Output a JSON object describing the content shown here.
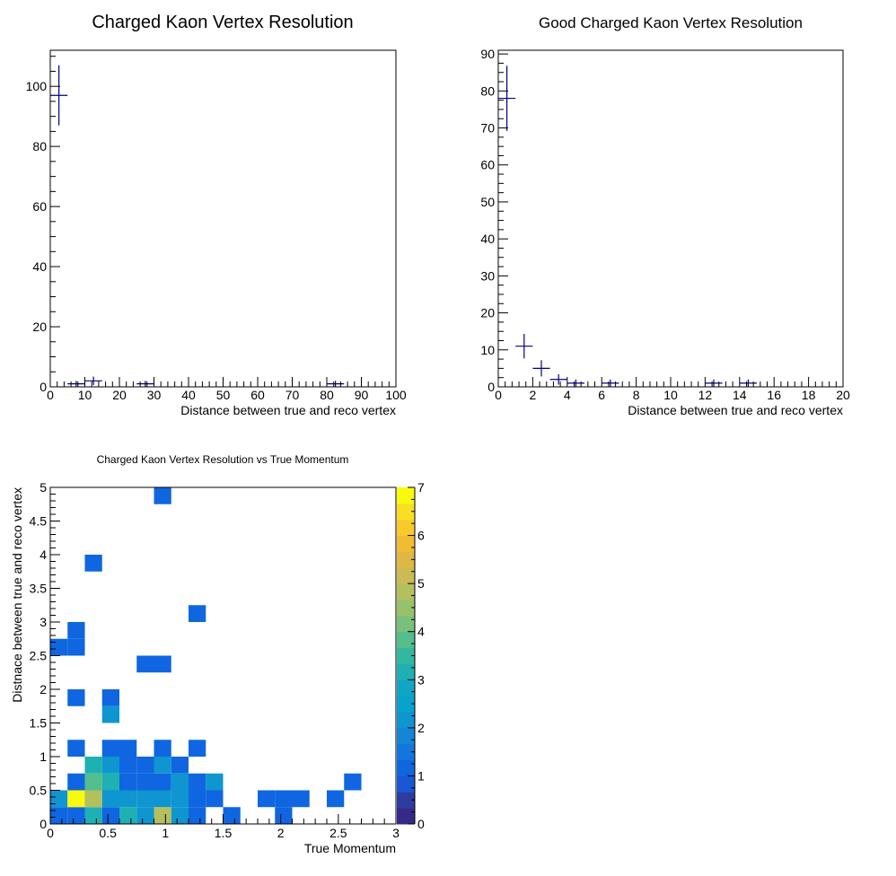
{
  "colors": {
    "marker": "#000080",
    "palette": [
      "#352a87",
      "#2d3c9e",
      "#1957d3",
      "#0f66e0",
      "#1376dc",
      "#1585d5",
      "#0f95d0",
      "#09a2cc",
      "#0ea6c4",
      "#1eb0b2",
      "#33b8a0",
      "#54be8d",
      "#79c17b",
      "#98c16c",
      "#b4bf5e",
      "#cbbb52",
      "#e0b745",
      "#f2bb34",
      "#f8cb2b",
      "#f9df24",
      "#f9f90e"
    ]
  },
  "chart_data": [
    {
      "type": "line",
      "style": "error-bar points",
      "title": "Charged Kaon Vertex Resolution",
      "xlabel": "Distance between true and reco vertex",
      "ylabel": "",
      "xlim": [
        0,
        100
      ],
      "ylim": [
        0,
        112
      ],
      "x_ticks": [
        0,
        10,
        20,
        30,
        40,
        50,
        60,
        70,
        80,
        90,
        100
      ],
      "y_ticks": [
        0,
        20,
        40,
        60,
        80,
        100
      ],
      "grid": false,
      "x": [
        2.5,
        7.5,
        12.5,
        27.5,
        82.5
      ],
      "y": [
        97,
        1,
        2,
        1,
        1
      ],
      "x_err": [
        2.5,
        2.5,
        2.5,
        2.5,
        2.5
      ],
      "y_err": [
        10,
        1,
        1.4,
        1,
        1
      ]
    },
    {
      "type": "line",
      "style": "error-bar points",
      "title": "Good Charged Kaon Vertex Resolution",
      "xlabel": "Distance between true and reco vertex",
      "ylabel": "",
      "xlim": [
        0,
        20
      ],
      "ylim": [
        0,
        91
      ],
      "x_ticks": [
        0,
        2,
        4,
        6,
        8,
        10,
        12,
        14,
        16,
        18,
        20
      ],
      "y_ticks": [
        0,
        10,
        20,
        30,
        40,
        50,
        60,
        70,
        80,
        90
      ],
      "grid": false,
      "x": [
        0.5,
        1.5,
        2.5,
        3.5,
        4.5,
        6.5,
        12.5,
        14.5
      ],
      "y": [
        78,
        11,
        5,
        2,
        1,
        1,
        1,
        1
      ],
      "x_err": [
        0.5,
        0.5,
        0.5,
        0.5,
        0.5,
        0.5,
        0.5,
        0.5
      ],
      "y_err": [
        8.8,
        3.3,
        2.2,
        1.4,
        1,
        1,
        1,
        1
      ]
    },
    {
      "type": "heatmap",
      "title": "Charged Kaon Vertex Resolution vs True Momentum",
      "xlabel": "True Momentum",
      "ylabel": "Distnace between true and reco vertex",
      "xlim": [
        0,
        3
      ],
      "ylim": [
        0,
        5
      ],
      "x_ticks": [
        "0",
        "0.5",
        "1",
        "1.5",
        "2",
        "2.5",
        "3"
      ],
      "y_ticks": [
        "0",
        "0.5",
        "1",
        "1.5",
        "2",
        "2.5",
        "3",
        "3.5",
        "4",
        "4.5",
        "5"
      ],
      "z_ticks": [
        "0",
        "1",
        "2",
        "3",
        "4",
        "5",
        "6",
        "7"
      ],
      "zlim": [
        0,
        7
      ],
      "legend": "color scale at right",
      "bin_width_x": 0.15,
      "bin_width_y": 0.25,
      "cells": [
        {
          "x": 0.0,
          "y": 0.0,
          "v": 1
        },
        {
          "x": 0.15,
          "y": 0.0,
          "v": 1
        },
        {
          "x": 0.3,
          "y": 0.0,
          "v": 3
        },
        {
          "x": 0.45,
          "y": 0.0,
          "v": 1
        },
        {
          "x": 0.6,
          "y": 0.0,
          "v": 3
        },
        {
          "x": 0.75,
          "y": 0.0,
          "v": 2
        },
        {
          "x": 0.9,
          "y": 0.0,
          "v": 5
        },
        {
          "x": 1.05,
          "y": 0.0,
          "v": 2
        },
        {
          "x": 1.2,
          "y": 0.0,
          "v": 1
        },
        {
          "x": 1.5,
          "y": 0.0,
          "v": 1
        },
        {
          "x": 1.95,
          "y": 0.0,
          "v": 1
        },
        {
          "x": 0.0,
          "y": 0.25,
          "v": 2
        },
        {
          "x": 0.15,
          "y": 0.25,
          "v": 7
        },
        {
          "x": 0.3,
          "y": 0.25,
          "v": 5
        },
        {
          "x": 0.45,
          "y": 0.25,
          "v": 2
        },
        {
          "x": 0.6,
          "y": 0.25,
          "v": 2
        },
        {
          "x": 0.75,
          "y": 0.25,
          "v": 2
        },
        {
          "x": 0.9,
          "y": 0.25,
          "v": 2
        },
        {
          "x": 1.05,
          "y": 0.25,
          "v": 2
        },
        {
          "x": 1.2,
          "y": 0.25,
          "v": 1
        },
        {
          "x": 1.35,
          "y": 0.25,
          "v": 1
        },
        {
          "x": 1.8,
          "y": 0.25,
          "v": 1
        },
        {
          "x": 1.95,
          "y": 0.25,
          "v": 1
        },
        {
          "x": 2.1,
          "y": 0.25,
          "v": 1
        },
        {
          "x": 2.4,
          "y": 0.25,
          "v": 1
        },
        {
          "x": 0.15,
          "y": 0.5,
          "v": 1
        },
        {
          "x": 0.3,
          "y": 0.5,
          "v": 4
        },
        {
          "x": 0.45,
          "y": 0.5,
          "v": 3
        },
        {
          "x": 0.6,
          "y": 0.5,
          "v": 1
        },
        {
          "x": 0.75,
          "y": 0.5,
          "v": 1
        },
        {
          "x": 0.9,
          "y": 0.5,
          "v": 1
        },
        {
          "x": 1.05,
          "y": 0.5,
          "v": 2
        },
        {
          "x": 1.2,
          "y": 0.5,
          "v": 1
        },
        {
          "x": 1.35,
          "y": 0.5,
          "v": 2
        },
        {
          "x": 2.55,
          "y": 0.5,
          "v": 1
        },
        {
          "x": 0.3,
          "y": 0.75,
          "v": 3
        },
        {
          "x": 0.45,
          "y": 0.75,
          "v": 2
        },
        {
          "x": 0.6,
          "y": 0.75,
          "v": 1
        },
        {
          "x": 0.75,
          "y": 0.75,
          "v": 1
        },
        {
          "x": 0.9,
          "y": 0.75,
          "v": 2
        },
        {
          "x": 1.05,
          "y": 0.75,
          "v": 1
        },
        {
          "x": 0.15,
          "y": 1.0,
          "v": 1
        },
        {
          "x": 0.45,
          "y": 1.0,
          "v": 1
        },
        {
          "x": 0.6,
          "y": 1.0,
          "v": 1
        },
        {
          "x": 0.9,
          "y": 1.0,
          "v": 1
        },
        {
          "x": 1.2,
          "y": 1.0,
          "v": 1
        },
        {
          "x": 0.45,
          "y": 1.5,
          "v": 2
        },
        {
          "x": 0.15,
          "y": 1.75,
          "v": 1
        },
        {
          "x": 0.45,
          "y": 1.75,
          "v": 1
        },
        {
          "x": 0.75,
          "y": 2.25,
          "v": 1
        },
        {
          "x": 0.9,
          "y": 2.25,
          "v": 1
        },
        {
          "x": 0.0,
          "y": 2.5,
          "v": 1
        },
        {
          "x": 0.15,
          "y": 2.5,
          "v": 1
        },
        {
          "x": 0.15,
          "y": 2.75,
          "v": 1
        },
        {
          "x": 1.2,
          "y": 3.0,
          "v": 1
        },
        {
          "x": 0.3,
          "y": 3.75,
          "v": 1
        },
        {
          "x": 0.9,
          "y": 4.75,
          "v": 1
        }
      ]
    }
  ]
}
